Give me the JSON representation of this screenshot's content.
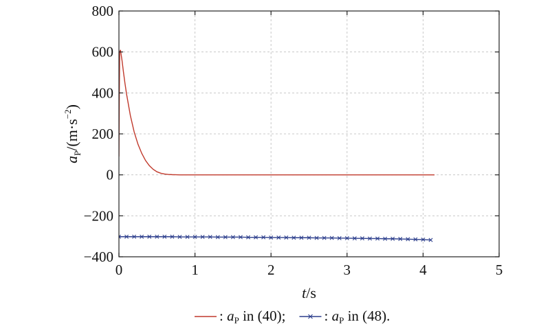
{
  "chart_data": {
    "type": "line",
    "xlabel_var": "t",
    "xlabel_unit": "/s",
    "ylabel_var": "a",
    "ylabel_sub": "P",
    "ylabel_unit_pre": "/(m·s",
    "ylabel_exp": "−2",
    "ylabel_unit_post": ")",
    "xlim": [
      0,
      5
    ],
    "ylim": [
      -400,
      800
    ],
    "xticks": [
      0,
      1,
      2,
      3,
      4,
      5
    ],
    "yticks": [
      -400,
      -200,
      0,
      200,
      400,
      600,
      800
    ],
    "ytick_labels": [
      "−400",
      "−200",
      "0",
      "200",
      "400",
      "600",
      "800"
    ],
    "grid": true,
    "legend_position": "bottom",
    "series": [
      {
        "legend_prefix": ": ",
        "legend_var": "a",
        "legend_sub": "P",
        "legend_suffix": " in (40);",
        "color": "#c0392b",
        "marker": "none",
        "x": [
          0,
          0.005,
          0.01,
          0.02,
          0.04,
          0.06,
          0.08,
          0.1,
          0.15,
          0.2,
          0.25,
          0.3,
          0.35,
          0.4,
          0.45,
          0.5,
          0.55,
          0.6,
          0.65,
          0.7,
          0.8,
          0.9,
          1.0,
          1.5,
          2.0,
          2.5,
          3.0,
          3.5,
          4.0,
          4.15
        ],
        "y": [
          90,
          400,
          600,
          610,
          560,
          500,
          445,
          395,
          290,
          210,
          150,
          105,
          70,
          45,
          27,
          15,
          8,
          4,
          2,
          1,
          0,
          0,
          0,
          0,
          0,
          0,
          0,
          0,
          0,
          0
        ]
      },
      {
        "legend_prefix": ": ",
        "legend_var": "a",
        "legend_sub": "P",
        "legend_suffix": " in (48).",
        "color": "#2c3e8c",
        "marker": "x",
        "x": [
          0.0,
          0.1,
          0.2,
          0.3,
          0.4,
          0.5,
          0.6,
          0.7,
          0.8,
          0.9,
          1.0,
          1.1,
          1.2,
          1.3,
          1.4,
          1.5,
          1.6,
          1.7,
          1.8,
          1.9,
          2.0,
          2.1,
          2.2,
          2.3,
          2.4,
          2.5,
          2.6,
          2.7,
          2.8,
          2.9,
          3.0,
          3.1,
          3.2,
          3.3,
          3.4,
          3.5,
          3.6,
          3.7,
          3.8,
          3.9,
          4.0,
          4.1
        ],
        "y": [
          -302,
          -302,
          -302,
          -302,
          -302,
          -302,
          -302,
          -302,
          -303,
          -303,
          -303,
          -303,
          -303,
          -304,
          -304,
          -304,
          -304,
          -305,
          -305,
          -305,
          -306,
          -306,
          -306,
          -307,
          -307,
          -307,
          -308,
          -308,
          -308,
          -309,
          -309,
          -310,
          -310,
          -311,
          -311,
          -312,
          -312,
          -313,
          -314,
          -315,
          -316,
          -318
        ]
      }
    ]
  }
}
